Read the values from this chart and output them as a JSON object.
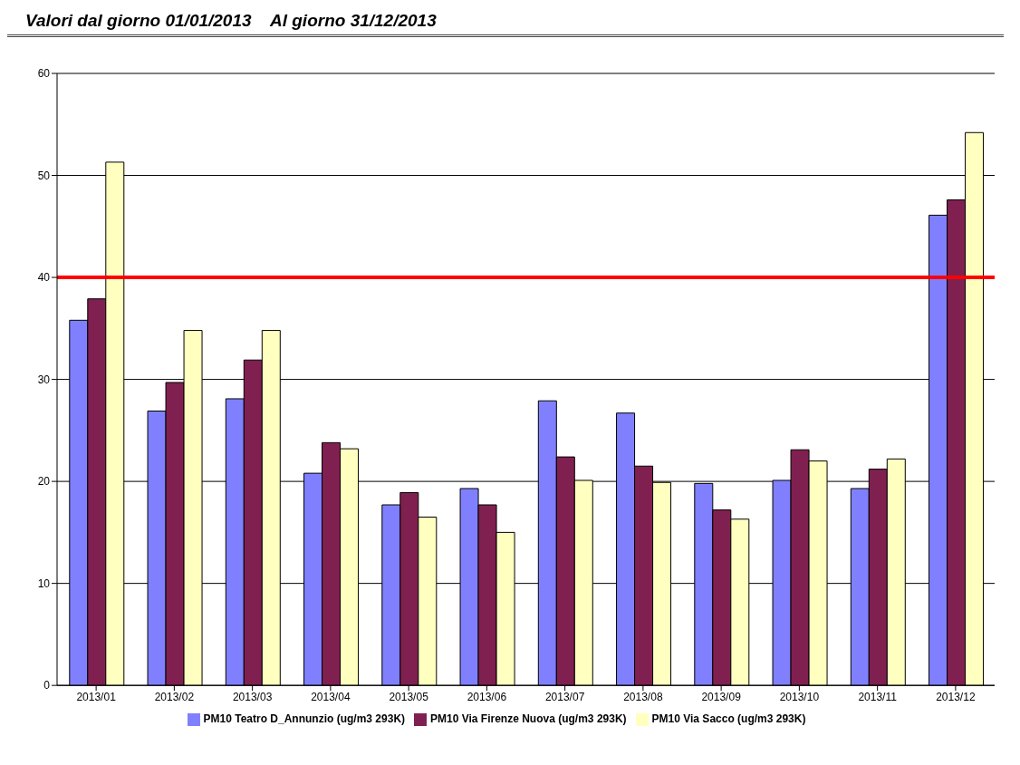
{
  "chart_data": {
    "type": "bar",
    "title": "Valori dal giorno 01/01/2013    Al giorno 31/12/2013",
    "categories": [
      "2013/01",
      "2013/02",
      "2013/03",
      "2013/04",
      "2013/05",
      "2013/06",
      "2013/07",
      "2013/08",
      "2013/09",
      "2013/10",
      "2013/11",
      "2013/12"
    ],
    "series": [
      {
        "name": "PM10 Teatro D_Annunzio (ug/m3 293K)",
        "color": "#8080ff",
        "values": [
          35.8,
          26.9,
          28.1,
          20.8,
          17.7,
          19.3,
          27.9,
          26.7,
          19.8,
          20.1,
          19.3,
          46.1
        ]
      },
      {
        "name": "PM10 Via Firenze Nuova (ug/m3 293K)",
        "color": "#802050",
        "values": [
          37.9,
          29.7,
          31.9,
          23.8,
          18.9,
          17.7,
          22.4,
          21.5,
          17.2,
          23.1,
          21.2,
          47.6
        ]
      },
      {
        "name": "PM10 Via Sacco (ug/m3 293K)",
        "color": "#ffffc0",
        "values": [
          51.3,
          34.8,
          34.8,
          23.2,
          16.5,
          15.0,
          20.1,
          19.9,
          16.3,
          22.0,
          22.2,
          54.2
        ]
      }
    ],
    "ylim": [
      0,
      60
    ],
    "yticks": [
      0,
      10,
      20,
      30,
      40,
      50,
      60
    ],
    "grid": "y",
    "legend": "bottom",
    "ref_lines": [
      {
        "axis": "y",
        "value": 40,
        "color": "#ff0000"
      }
    ]
  }
}
